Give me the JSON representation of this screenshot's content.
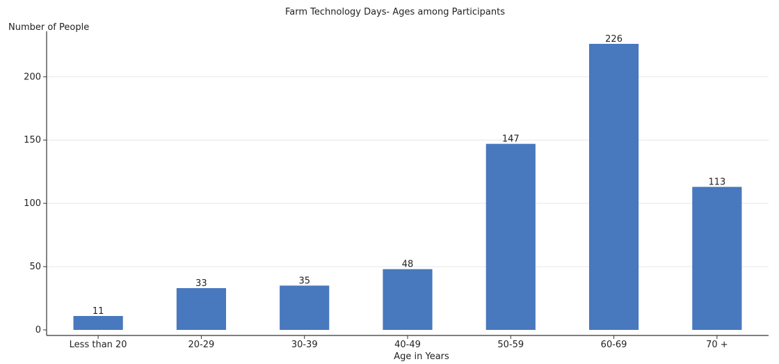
{
  "chart_data": {
    "type": "bar",
    "title": "Farm Technology Days- Ages among Participants",
    "xlabel": "Age in Years",
    "ylabel": "Number of People",
    "categories": [
      "Less than 20",
      "20-29",
      "30-39",
      "40-49",
      "50-59",
      "60-69",
      "70 +"
    ],
    "values": [
      11,
      33,
      35,
      48,
      147,
      226,
      113
    ],
    "ylim": [
      0,
      226
    ],
    "yticks": [
      0,
      50,
      100,
      150,
      200
    ],
    "grid": true,
    "bar_color": "#4878BE"
  }
}
